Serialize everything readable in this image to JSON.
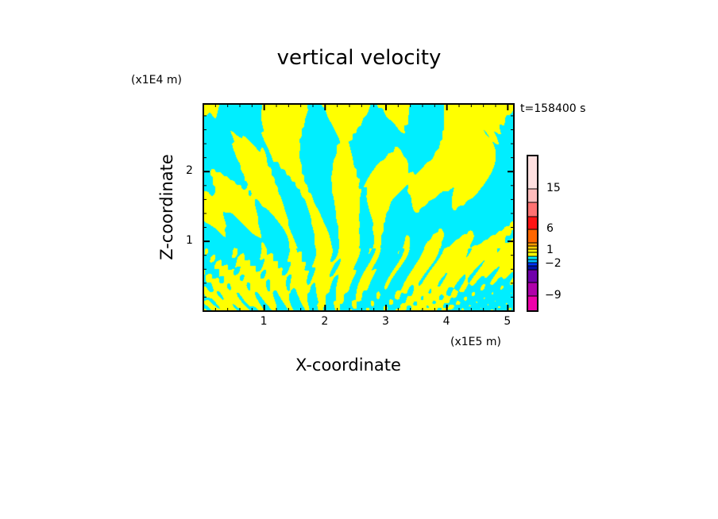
{
  "chart_data": {
    "type": "heatmap",
    "title": "vertical velocity",
    "xlabel": "X-coordinate",
    "ylabel": "Z-coordinate",
    "x_unit": "(x1E5 m)",
    "y_unit": "(x1E4 m)",
    "annotation": "t=158400 s",
    "xlim": [
      0,
      5.1
    ],
    "ylim": [
      0,
      2.97
    ],
    "xticks": [
      "1",
      "2",
      "3",
      "4",
      "5"
    ],
    "xtick_values": [
      1,
      2,
      3,
      4,
      5
    ],
    "yticks": [
      "1",
      "2"
    ],
    "ytick_values": [
      1,
      2
    ],
    "dominant_levels": {
      "positive": "#ffff00",
      "negative": "#00eeff"
    },
    "colorbar": {
      "labels": [
        "15",
        "6",
        "1",
        "−2",
        "−9"
      ],
      "colors": [
        "#ffe0e0",
        "#ffbcbc",
        "#ff7272",
        "#ff1414",
        "#ff6600",
        "#ff9900",
        "#ffcc00",
        "#ffee00",
        "#ffff00",
        "#00eeff",
        "#00bbff",
        "#0033ff",
        "#0011aa",
        "#7000aa",
        "#b000aa",
        "#ee00aa"
      ]
    }
  }
}
